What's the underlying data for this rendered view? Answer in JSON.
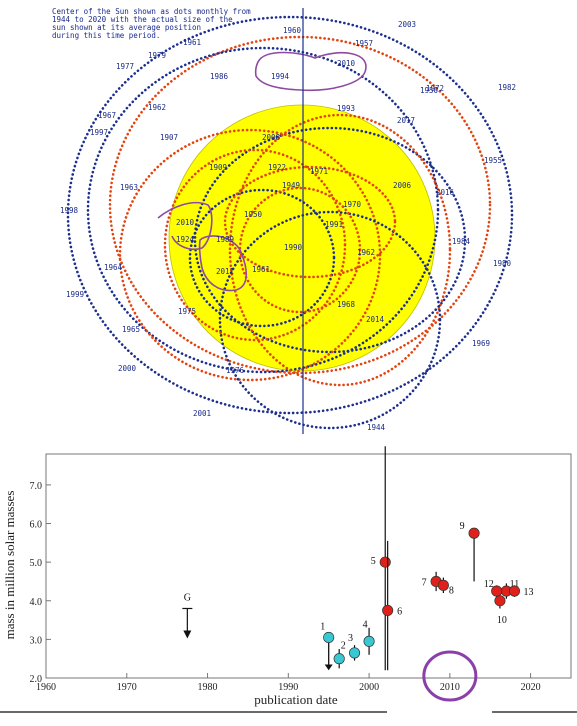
{
  "top_panel": {
    "caption_lines": [
      "Center of the Sun shown as dots monthly from",
      "1944 to 2020 with the actual size of the",
      "sun shown at its average position",
      "during this time period."
    ],
    "year_labels": [
      "1960",
      "1997",
      "1982",
      "1955",
      "1998",
      "1984",
      "1980",
      "1963",
      "1975",
      "1969",
      "2000",
      "2001",
      "1944",
      "1961",
      "1986",
      "1994",
      "2010",
      "1993",
      "1957",
      "1950",
      "1962",
      "1907",
      "2008",
      "1909",
      "1922",
      "1971",
      "1949",
      "1950",
      "2006",
      "2016",
      "1970",
      "1991",
      "1990",
      "1961",
      "1962",
      "1968",
      "2014",
      "2017",
      "1976",
      "2010",
      "1924",
      "1989",
      "2011",
      "1965",
      "1967",
      "1972",
      "1977",
      "1964",
      "1999",
      "1979",
      "2003"
    ],
    "highlight_years": [
      "1994",
      "2010",
      "2011",
      "2010"
    ]
  },
  "chart_data": {
    "type": "scatter",
    "xlabel": "publication date",
    "ylabel": "mass in million solar masses",
    "xlim": [
      1960,
      2025
    ],
    "ylim": [
      2.0,
      7.8
    ],
    "x_ticks": [
      "1960",
      "1970",
      "1980",
      "1990",
      "2000",
      "2010",
      "2020"
    ],
    "y_ticks": [
      "2.0",
      "3.0",
      "4.0",
      "5.0",
      "6.0",
      "7.0"
    ],
    "marker": {
      "label": "G",
      "x": 1977.5,
      "y": 3.8,
      "type": "upper-limit"
    },
    "series": [
      {
        "color": "#37c8d4",
        "points": [
          {
            "label": "1",
            "x": 1995.0,
            "y": 3.05,
            "err": 0.1,
            "upper_limit": true
          },
          {
            "label": "2",
            "x": 1996.3,
            "y": 2.5,
            "err": 0.25
          },
          {
            "label": "3",
            "x": 1998.2,
            "y": 2.65,
            "err": 0.2
          },
          {
            "label": "4",
            "x": 2000.0,
            "y": 2.95,
            "err": 0.35
          }
        ]
      },
      {
        "color": "#e0201a",
        "points": [
          {
            "label": "5",
            "x": 2002.0,
            "y": 5.0,
            "err_low": 2.8,
            "err_high": 3.0
          },
          {
            "label": "6",
            "x": 2002.3,
            "y": 3.75,
            "err_low": 1.55,
            "err_high": 1.8
          },
          {
            "label": "7",
            "x": 2008.3,
            "y": 4.5,
            "err": 0.25
          },
          {
            "label": "8",
            "x": 2009.2,
            "y": 4.4,
            "err": 0.2
          },
          {
            "label": "9",
            "x": 2013.0,
            "y": 5.75,
            "err_low": 1.25,
            "err_high": 0.0
          },
          {
            "label": "10",
            "x": 2016.2,
            "y": 4.0,
            "err": 0.2
          },
          {
            "label": "11",
            "x": 2017.0,
            "y": 4.25,
            "err": 0.2
          },
          {
            "label": "12",
            "x": 2015.8,
            "y": 4.25,
            "err": 0.15
          },
          {
            "label": "13",
            "x": 2018.0,
            "y": 4.25,
            "err": 0.15
          }
        ]
      }
    ],
    "highlight": {
      "x": 2010,
      "shape": "ellipse",
      "color": "#8b3fa8"
    }
  }
}
